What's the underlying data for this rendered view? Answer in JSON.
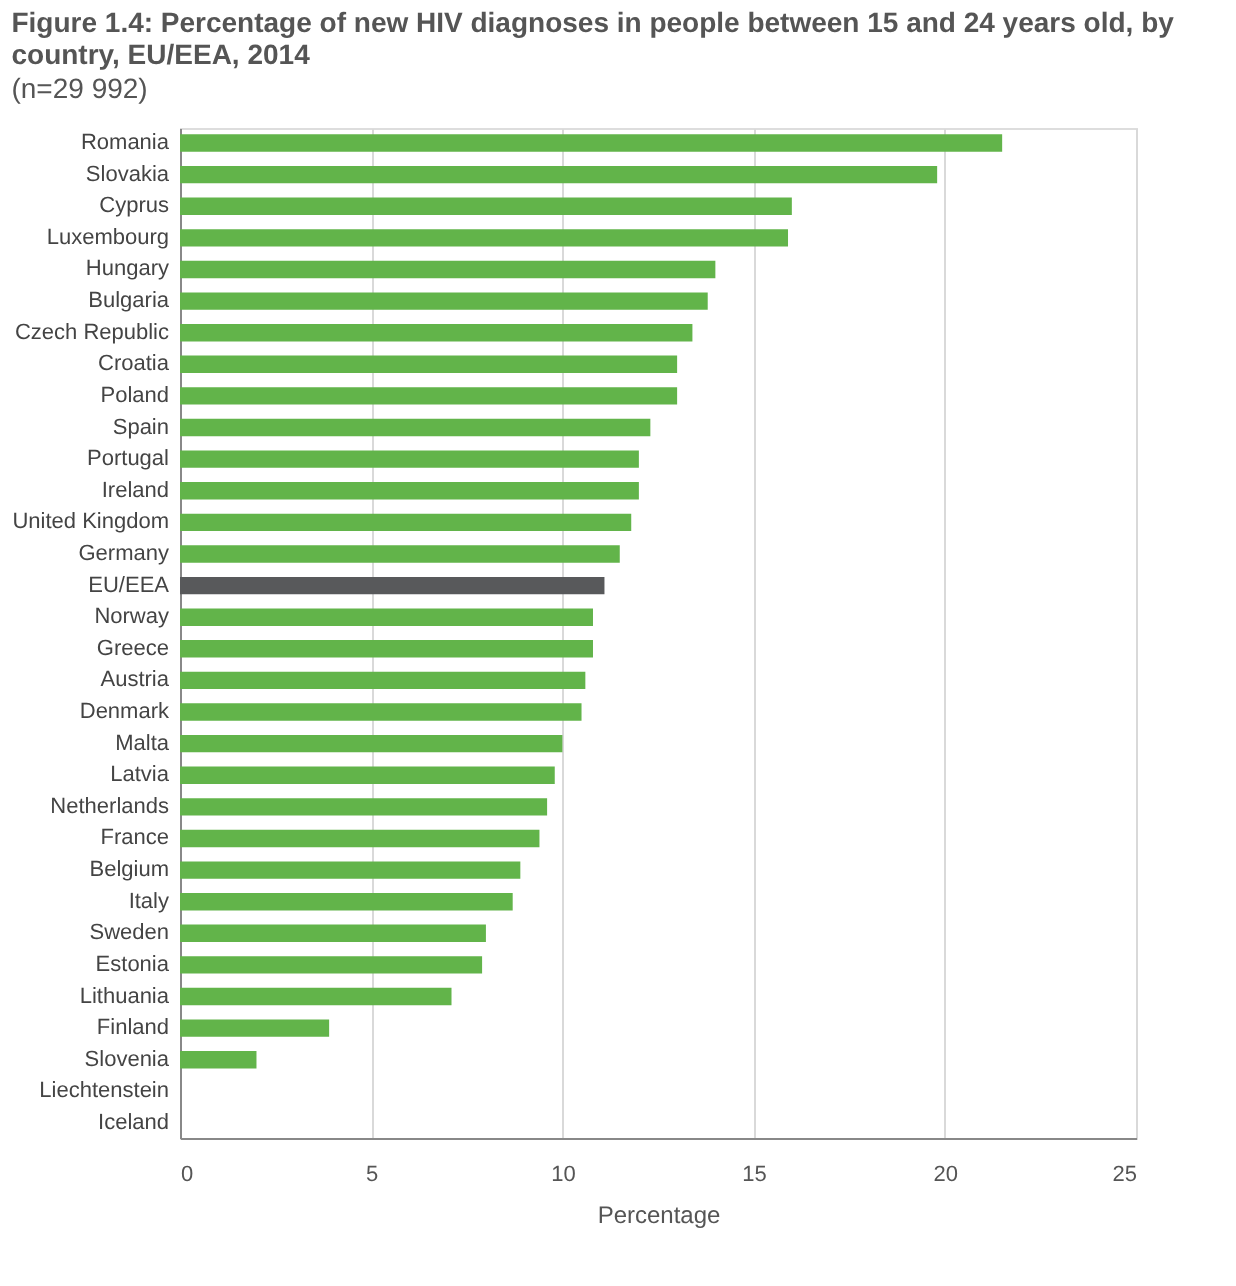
{
  "chart_data": {
    "type": "bar",
    "orientation": "horizontal",
    "title": "Figure 1.4: Percentage of new HIV diagnoses in people between 15 and 24 years old, by country, EU/EEA, 2014",
    "subtitle": "(n=29 992)",
    "xlabel": "Percentage",
    "categories": [
      "Romania",
      "Slovakia",
      "Cyprus",
      "Luxembourg",
      "Hungary",
      "Bulgaria",
      "Czech Republic",
      "Croatia",
      "Poland",
      "Spain",
      "Portugal",
      "Ireland",
      "United Kingdom",
      "Germany",
      "EU/EEA",
      "Norway",
      "Greece",
      "Austria",
      "Denmark",
      "Malta",
      "Latvia",
      "Netherlands",
      "France",
      "Belgium",
      "Italy",
      "Sweden",
      "Estonia",
      "Lithuania",
      "Finland",
      "Slovenia",
      "Liechtenstein",
      "Iceland"
    ],
    "values": [
      21.5,
      19.8,
      16.0,
      15.9,
      14.0,
      13.8,
      13.4,
      13.0,
      13.0,
      12.3,
      12.0,
      12.0,
      11.8,
      11.5,
      11.1,
      10.8,
      10.8,
      10.6,
      10.5,
      10.0,
      9.8,
      9.6,
      9.4,
      8.9,
      8.7,
      8.0,
      7.9,
      7.1,
      3.9,
      2.0,
      0,
      0
    ],
    "colors": [
      "#62b44a",
      "#62b44a",
      "#62b44a",
      "#62b44a",
      "#62b44a",
      "#62b44a",
      "#62b44a",
      "#62b44a",
      "#62b44a",
      "#62b44a",
      "#62b44a",
      "#62b44a",
      "#62b44a",
      "#62b44a",
      "#58595b",
      "#62b44a",
      "#62b44a",
      "#62b44a",
      "#62b44a",
      "#62b44a",
      "#62b44a",
      "#62b44a",
      "#62b44a",
      "#62b44a",
      "#62b44a",
      "#62b44a",
      "#62b44a",
      "#62b44a",
      "#62b44a",
      "#62b44a",
      "#62b44a",
      "#62b44a"
    ],
    "xlim": [
      0,
      25
    ],
    "xticks": [
      0,
      5,
      10,
      15,
      20,
      25
    ],
    "grid": "x"
  }
}
